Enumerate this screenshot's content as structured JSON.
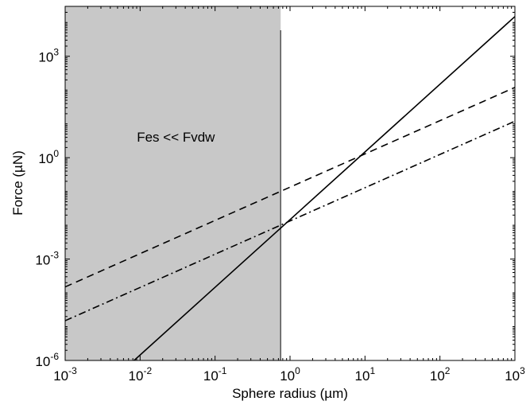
{
  "chart_data": {
    "type": "line",
    "xlabel": "Sphere radius (µm)",
    "ylabel": "Force (µN)",
    "xscale": "log",
    "yscale": "log",
    "xlim": [
      0.001,
      1000
    ],
    "ylim": [
      1e-06,
      30000
    ],
    "grid": false,
    "legend": "none",
    "x_ticks": [
      {
        "base": "10",
        "exp": "-3",
        "value": 0.001
      },
      {
        "base": "10",
        "exp": "-2",
        "value": 0.01
      },
      {
        "base": "10",
        "exp": "-1",
        "value": 0.1
      },
      {
        "base": "10",
        "exp": "0",
        "value": 1
      },
      {
        "base": "10",
        "exp": "1",
        "value": 10
      },
      {
        "base": "10",
        "exp": "2",
        "value": 100
      },
      {
        "base": "10",
        "exp": "3",
        "value": 1000
      }
    ],
    "y_ticks": [
      {
        "base": "10",
        "exp": "-6",
        "value": 1e-06
      },
      {
        "base": "10",
        "exp": "-3",
        "value": 0.001
      },
      {
        "base": "10",
        "exp": "0",
        "value": 1
      },
      {
        "base": "10",
        "exp": "3",
        "value": 1000
      }
    ],
    "shaded_region": {
      "x_range": [
        0.001,
        0.75
      ],
      "label": "Fes << Fvdw",
      "label_position": [
        0.03,
        3
      ],
      "fill": "#c8c8c8"
    },
    "series": [
      {
        "style": "solid",
        "color": "#000000",
        "x": [
          0.0083,
          1000
        ],
        "y": [
          1e-06,
          15000
        ]
      },
      {
        "style": "dashed",
        "color": "#000000",
        "x": [
          0.001,
          1000
        ],
        "y": [
          0.00015,
          120
        ]
      },
      {
        "style": "dashdot",
        "color": "#000000",
        "x": [
          0.001,
          1000
        ],
        "y": [
          1.5e-05,
          12
        ]
      }
    ]
  }
}
